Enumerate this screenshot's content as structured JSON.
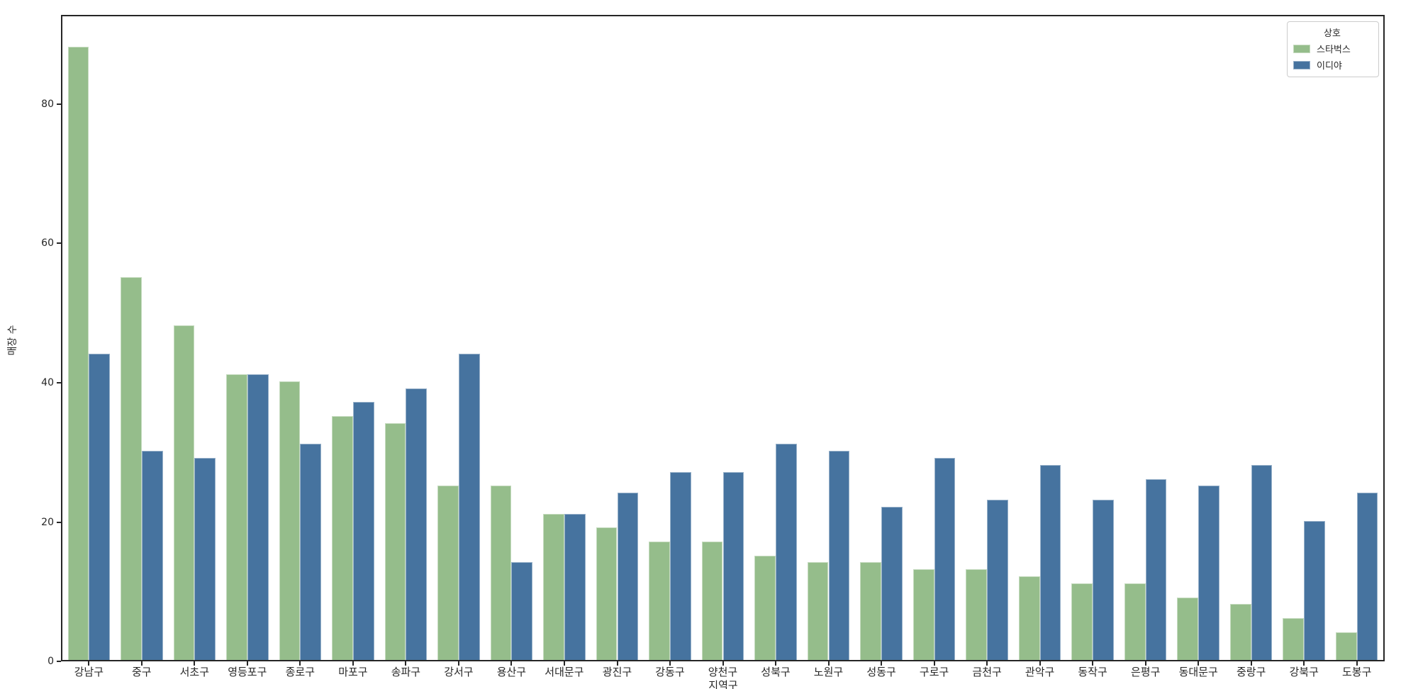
{
  "chart_data": {
    "type": "bar",
    "title": "",
    "xlabel": "지역구",
    "ylabel": "매장 수",
    "ylim": [
      0,
      92.4
    ],
    "yticks": [
      0,
      20,
      40,
      60,
      80
    ],
    "grid": false,
    "legend": {
      "title": "상호",
      "position": "upper right"
    },
    "categories": [
      "강남구",
      "중구",
      "서초구",
      "영등포구",
      "종로구",
      "마포구",
      "송파구",
      "강서구",
      "용산구",
      "서대문구",
      "광진구",
      "강동구",
      "양천구",
      "성북구",
      "노원구",
      "성동구",
      "구로구",
      "금천구",
      "관악구",
      "동작구",
      "은평구",
      "동대문구",
      "중랑구",
      "강북구",
      "도봉구"
    ],
    "series": [
      {
        "name": "스타벅스",
        "color": "#95bd8b",
        "values": [
          88,
          55,
          48,
          41,
          40,
          35,
          34,
          25,
          25,
          21,
          19,
          17,
          17,
          15,
          14,
          14,
          13,
          13,
          12,
          11,
          11,
          9,
          8,
          6,
          4
        ]
      },
      {
        "name": "이디야",
        "color": "#46739f",
        "values": [
          44,
          30,
          29,
          41,
          31,
          37,
          39,
          44,
          14,
          21,
          24,
          27,
          27,
          31,
          30,
          22,
          29,
          23,
          28,
          23,
          26,
          25,
          28,
          20,
          24
        ]
      }
    ]
  }
}
